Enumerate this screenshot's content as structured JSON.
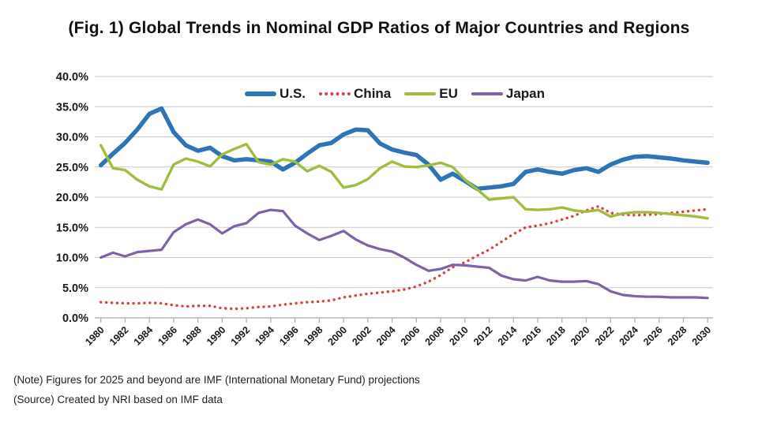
{
  "title": "(Fig. 1) Global Trends in Nominal GDP Ratios of Major Countries and Regions",
  "notes": {
    "note": "(Note) Figures for 2025 and beyond are IMF (International Monetary Fund) projections",
    "source": "(Source) Created by NRI based on IMF data"
  },
  "colors": {
    "us": "#2E75B6",
    "china": "#DB4040",
    "eu": "#A0BE3E",
    "japan": "#7D62A8",
    "gridline": "#C8C8C8",
    "axis": "#ACACAC",
    "text": "#1A1A1A"
  },
  "chart_data": {
    "type": "line",
    "title": "(Fig. 1) Global Trends in Nominal GDP Ratios of Major Countries and Regions",
    "xlabel": "",
    "ylabel": "",
    "ylim": [
      0,
      40
    ],
    "ytick_step": 5,
    "grid": true,
    "legend_position": "top-center",
    "ytick_labels": [
      "0.0%",
      "5.0%",
      "10.0%",
      "15.0%",
      "20.0%",
      "25.0%",
      "30.0%",
      "35.0%",
      "40.0%"
    ],
    "xtick_labels": [
      "1980",
      "1982",
      "1984",
      "1986",
      "1988",
      "1990",
      "1992",
      "1994",
      "1996",
      "1998",
      "2000",
      "2002",
      "2004",
      "2006",
      "2008",
      "2010",
      "2012",
      "2014",
      "2016",
      "2018",
      "2020",
      "2022",
      "2024",
      "2026",
      "2028",
      "2030"
    ],
    "x": [
      1980,
      1981,
      1982,
      1983,
      1984,
      1985,
      1986,
      1987,
      1988,
      1989,
      1990,
      1991,
      1992,
      1993,
      1994,
      1995,
      1996,
      1997,
      1998,
      1999,
      2000,
      2001,
      2002,
      2003,
      2004,
      2005,
      2006,
      2007,
      2008,
      2009,
      2010,
      2011,
      2012,
      2013,
      2014,
      2015,
      2016,
      2017,
      2018,
      2019,
      2020,
      2021,
      2022,
      2023,
      2024,
      2025,
      2026,
      2027,
      2028,
      2029,
      2030
    ],
    "series": [
      {
        "name": "U.S.",
        "color": "#2E75B6",
        "line_style": "solid",
        "line_width": 5.5,
        "values": [
          25.3,
          27.2,
          29.0,
          31.2,
          33.8,
          34.7,
          30.8,
          28.6,
          27.7,
          28.2,
          26.8,
          26.1,
          26.3,
          26.1,
          25.9,
          24.6,
          25.7,
          27.2,
          28.6,
          29.0,
          30.4,
          31.2,
          31.1,
          28.9,
          27.9,
          27.4,
          27.0,
          25.4,
          22.9,
          23.9,
          22.7,
          21.4,
          21.6,
          21.8,
          22.2,
          24.2,
          24.6,
          24.2,
          23.9,
          24.5,
          24.8,
          24.2,
          25.4,
          26.2,
          26.7,
          26.8,
          26.6,
          26.4,
          26.1,
          25.9,
          25.7
        ]
      },
      {
        "name": "China",
        "color": "#DB4040",
        "line_style": "dotted",
        "line_width": 3.4,
        "values": [
          2.6,
          2.5,
          2.4,
          2.4,
          2.5,
          2.4,
          2.1,
          1.9,
          2.0,
          2.0,
          1.6,
          1.5,
          1.6,
          1.8,
          1.9,
          2.2,
          2.4,
          2.6,
          2.7,
          2.9,
          3.4,
          3.7,
          4.0,
          4.2,
          4.4,
          4.7,
          5.2,
          6.0,
          7.1,
          8.4,
          9.2,
          10.3,
          11.3,
          12.6,
          13.9,
          15.0,
          15.3,
          15.7,
          16.3,
          16.9,
          17.8,
          18.5,
          17.4,
          17.1,
          17.0,
          17.1,
          17.2,
          17.4,
          17.6,
          17.8,
          18.0
        ]
      },
      {
        "name": "EU",
        "color": "#A0BE3E",
        "line_style": "solid",
        "line_width": 3.4,
        "values": [
          28.6,
          24.8,
          24.5,
          22.9,
          21.8,
          21.3,
          25.4,
          26.4,
          25.9,
          25.1,
          27.1,
          28.0,
          28.8,
          25.8,
          25.4,
          26.3,
          25.9,
          24.3,
          25.2,
          24.2,
          21.6,
          22.0,
          23.0,
          24.8,
          25.9,
          25.1,
          25.0,
          25.3,
          25.7,
          25.0,
          22.9,
          21.3,
          19.6,
          19.8,
          20.0,
          18.0,
          17.9,
          18.0,
          18.3,
          17.8,
          17.6,
          17.9,
          16.8,
          17.3,
          17.5,
          17.5,
          17.4,
          17.2,
          17.0,
          16.8,
          16.5
        ]
      },
      {
        "name": "Japan",
        "color": "#7D62A8",
        "line_style": "solid",
        "line_width": 3.2,
        "values": [
          10.0,
          10.8,
          10.2,
          10.9,
          11.1,
          11.3,
          14.2,
          15.5,
          16.3,
          15.5,
          14.0,
          15.2,
          15.7,
          17.4,
          17.9,
          17.7,
          15.3,
          14.0,
          12.9,
          13.6,
          14.4,
          13.0,
          12.0,
          11.4,
          11.0,
          10.0,
          8.8,
          7.8,
          8.1,
          8.8,
          8.7,
          8.5,
          8.3,
          7.0,
          6.4,
          6.2,
          6.8,
          6.2,
          6.0,
          6.0,
          6.1,
          5.6,
          4.4,
          3.8,
          3.6,
          3.5,
          3.5,
          3.4,
          3.4,
          3.4,
          3.3
        ]
      }
    ]
  }
}
